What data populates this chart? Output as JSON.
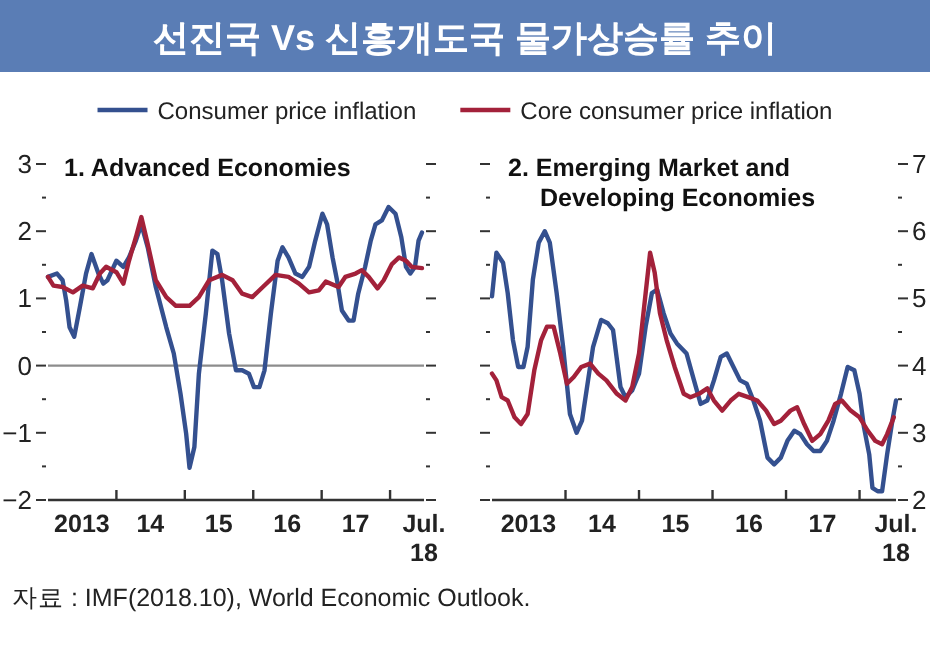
{
  "chart_data": [
    {
      "type": "line",
      "title": "선진국 Vs 신흥개도국 물가상승률 추이",
      "subtitle": "1. Advanced Economies",
      "legend": "top",
      "grid": false,
      "annotations": [
        "자료 : IMF(2018.10), World Economic Outlook."
      ],
      "xlim": [
        "2013-01-01",
        "2018-07-01"
      ],
      "xticks": [
        {
          "value": "2013-07-01",
          "label": "2013"
        },
        {
          "value": "2014-01-01",
          "label": null
        },
        {
          "value": "2014-07-01",
          "label": "14"
        },
        {
          "value": "2015-01-01",
          "label": null
        },
        {
          "value": "2015-07-01",
          "label": "15"
        },
        {
          "value": "2016-01-01",
          "label": null
        },
        {
          "value": "2016-07-01",
          "label": "16"
        },
        {
          "value": "2017-01-01",
          "label": null
        },
        {
          "value": "2017-07-01",
          "label": "17"
        },
        {
          "value": "2018-01-01",
          "label": null
        },
        {
          "value": "2018-07-01",
          "label": "Jul.\n18"
        }
      ],
      "ylim": [
        -2,
        3
      ],
      "yticks": [
        {
          "value": -2,
          "label": "−2"
        },
        {
          "value": -1.5,
          "label": null
        },
        {
          "value": -1,
          "label": "−1"
        },
        {
          "value": -0.5,
          "label": null
        },
        0,
        {
          "value": 0.5,
          "label": null
        },
        1,
        {
          "value": 1.5,
          "label": null
        },
        2,
        {
          "value": 2.5,
          "label": null
        },
        3
      ],
      "ref_lines": [
        {
          "axis": "y",
          "value": 0,
          "color": "#8c8c8c"
        }
      ],
      "series": [
        {
          "name": "Consumer price inflation",
          "color": "#34508f",
          "x": [
            "2013-01-01",
            "2013-02-18",
            "2013-03-20",
            "2013-04-08",
            "2013-04-26",
            "2013-05-21",
            "2013-06-20",
            "2013-07-23",
            "2013-08-21",
            "2013-09-27",
            "2013-10-23",
            "2013-11-14",
            "2014-01-01",
            "2014-02-07",
            "2014-03-09",
            "2014-04-15",
            "2014-05-14",
            "2014-06-17",
            "2014-07-30",
            "2014-09-24",
            "2014-11-03",
            "2014-12-09",
            "2015-01-08",
            "2015-01-26",
            "2015-02-21",
            "2015-03-17",
            "2015-04-23",
            "2015-05-28",
            "2015-06-24",
            "2015-07-19",
            "2015-08-25",
            "2015-10-01",
            "2015-11-03",
            "2015-12-09",
            "2016-01-05",
            "2016-02-03",
            "2016-03-02",
            "2016-04-05",
            "2016-05-11",
            "2016-06-06",
            "2016-07-08",
            "2016-08-14",
            "2016-09-20",
            "2016-10-26",
            "2016-11-28",
            "2017-01-05",
            "2017-01-30",
            "2017-02-28",
            "2017-03-24",
            "2017-04-19",
            "2017-05-25",
            "2017-06-20",
            "2017-07-15",
            "2017-08-21",
            "2017-09-20",
            "2017-10-15",
            "2017-11-18",
            "2017-12-24",
            "2018-01-30",
            "2018-03-02",
            "2018-03-27",
            "2018-04-19",
            "2018-05-14",
            "2018-06-02",
            "2018-06-20"
          ],
          "values": [
            1.32,
            1.37,
            1.27,
            0.97,
            0.57,
            0.43,
            0.87,
            1.37,
            1.66,
            1.37,
            1.22,
            1.27,
            1.56,
            1.47,
            1.61,
            1.86,
            2.1,
            1.76,
            1.17,
            0.57,
            0.18,
            -0.42,
            -1.01,
            -1.52,
            -1.21,
            -0.12,
            0.77,
            1.71,
            1.66,
            1.27,
            0.48,
            -0.07,
            -0.07,
            -0.12,
            -0.32,
            -0.32,
            -0.07,
            0.77,
            1.56,
            1.76,
            1.61,
            1.37,
            1.32,
            1.47,
            1.86,
            2.26,
            2.1,
            1.61,
            1.27,
            0.82,
            0.67,
            0.67,
            1.07,
            1.47,
            1.86,
            2.1,
            2.16,
            2.36,
            2.26,
            1.91,
            1.47,
            1.37,
            1.47,
            1.86,
            1.98
          ]
        },
        {
          "name": "Core consumer price inflation",
          "color": "#a3213a",
          "x": [
            "2013-01-01",
            "2013-01-30",
            "2013-03-20",
            "2013-05-14",
            "2013-07-05",
            "2013-08-28",
            "2013-10-05",
            "2013-11-07",
            "2014-01-01",
            "2014-02-07",
            "2014-03-09",
            "2014-04-15",
            "2014-05-14",
            "2014-06-17",
            "2014-07-30",
            "2014-09-24",
            "2014-11-14",
            "2015-01-26",
            "2015-03-17",
            "2015-05-11",
            "2015-07-19",
            "2015-09-13",
            "2015-11-03",
            "2015-12-27",
            "2016-02-21",
            "2016-04-30",
            "2016-07-08",
            "2016-09-02",
            "2016-10-26",
            "2016-12-17",
            "2017-01-23",
            "2017-04-01",
            "2017-05-07",
            "2017-07-01",
            "2017-08-03",
            "2017-09-09",
            "2017-10-26",
            "2017-11-28",
            "2018-01-11",
            "2018-02-18",
            "2018-03-27",
            "2018-04-26",
            "2018-06-20"
          ],
          "values": [
            1.32,
            1.19,
            1.17,
            1.09,
            1.19,
            1.15,
            1.37,
            1.47,
            1.39,
            1.22,
            1.56,
            1.91,
            2.21,
            1.81,
            1.27,
            1.02,
            0.89,
            0.89,
            1.02,
            1.27,
            1.35,
            1.27,
            1.07,
            1.02,
            1.17,
            1.35,
            1.32,
            1.22,
            1.09,
            1.12,
            1.25,
            1.17,
            1.32,
            1.37,
            1.42,
            1.32,
            1.15,
            1.27,
            1.51,
            1.61,
            1.56,
            1.47,
            1.45
          ]
        }
      ]
    },
    {
      "type": "line",
      "subtitle": "2. Emerging Market and\nDeveloping Economies",
      "xlim": [
        "2013-01-01",
        "2018-07-01"
      ],
      "xticks": [
        {
          "value": "2013-07-01",
          "label": "2013"
        },
        {
          "value": "2014-01-01",
          "label": null
        },
        {
          "value": "2014-07-01",
          "label": "14"
        },
        {
          "value": "2015-01-01",
          "label": null
        },
        {
          "value": "2015-07-01",
          "label": "15"
        },
        {
          "value": "2016-01-01",
          "label": null
        },
        {
          "value": "2016-07-01",
          "label": "16"
        },
        {
          "value": "2017-01-01",
          "label": null
        },
        {
          "value": "2017-07-01",
          "label": "17"
        },
        {
          "value": "2018-01-01",
          "label": null
        },
        {
          "value": "2018-07-01",
          "label": "Jul.\n18"
        }
      ],
      "y2lim": [
        2,
        7
      ],
      "y2ticks": [
        2,
        {
          "value": 2.5,
          "label": null
        },
        3,
        {
          "value": 3.5,
          "label": null
        },
        4,
        {
          "value": 4.5,
          "label": null
        },
        5,
        {
          "value": 5.5,
          "label": null
        },
        6,
        {
          "value": 6.5,
          "label": null
        },
        7
      ],
      "series": [
        {
          "color": "#34508f",
          "axis": "y2",
          "x": [
            "2013-01-01",
            "2013-01-23",
            "2013-02-25",
            "2013-03-20",
            "2013-04-15",
            "2013-05-11",
            "2013-06-06",
            "2013-06-27",
            "2013-07-23",
            "2013-08-21",
            "2013-09-20",
            "2013-10-15",
            "2013-11-18",
            "2013-12-20",
            "2014-01-23",
            "2014-02-25",
            "2014-03-24",
            "2014-04-23",
            "2014-05-18",
            "2014-06-27",
            "2014-07-30",
            "2014-08-25",
            "2014-10-01",
            "2014-10-26",
            "2014-11-28",
            "2015-01-01",
            "2015-02-03",
            "2015-03-06",
            "2015-04-01",
            "2015-05-03",
            "2015-06-06",
            "2015-07-08",
            "2015-08-25",
            "2015-10-01",
            "2015-11-03",
            "2015-12-06",
            "2016-01-08",
            "2016-02-11",
            "2016-03-13",
            "2016-04-15",
            "2016-05-18",
            "2016-06-20",
            "2016-07-23",
            "2016-08-25",
            "2016-10-01",
            "2016-11-03",
            "2016-12-06",
            "2017-01-08",
            "2017-02-11",
            "2017-03-13",
            "2017-04-15",
            "2017-05-18",
            "2017-06-20",
            "2017-07-23",
            "2017-08-25",
            "2017-10-01",
            "2017-11-03",
            "2017-12-06",
            "2018-01-01",
            "2018-01-23",
            "2018-02-18",
            "2018-03-06",
            "2018-04-01",
            "2018-04-23",
            "2018-05-18",
            "2018-06-13",
            "2018-07-01"
          ],
          "values": [
            5.03,
            5.68,
            5.53,
            5.08,
            4.38,
            3.98,
            3.98,
            4.28,
            5.28,
            5.83,
            6.0,
            5.83,
            5.08,
            4.28,
            3.28,
            3.0,
            3.18,
            3.78,
            4.28,
            4.68,
            4.63,
            4.53,
            3.68,
            3.53,
            3.63,
            3.88,
            4.58,
            5.08,
            5.13,
            4.78,
            4.48,
            4.33,
            4.18,
            3.78,
            3.43,
            3.48,
            3.78,
            4.13,
            4.18,
            3.98,
            3.78,
            3.73,
            3.48,
            3.18,
            2.63,
            2.53,
            2.63,
            2.88,
            3.03,
            2.98,
            2.83,
            2.73,
            2.73,
            2.88,
            3.18,
            3.58,
            3.98,
            3.93,
            3.58,
            3.08,
            2.68,
            2.18,
            2.13,
            2.13,
            2.68,
            3.18,
            3.48
          ]
        },
        {
          "color": "#a3213a",
          "axis": "y2",
          "x": [
            "2013-01-01",
            "2013-01-23",
            "2013-02-18",
            "2013-03-20",
            "2013-04-23",
            "2013-05-25",
            "2013-06-27",
            "2013-07-30",
            "2013-09-02",
            "2013-10-01",
            "2013-11-03",
            "2013-12-06",
            "2014-01-08",
            "2014-02-11",
            "2014-03-20",
            "2014-05-03",
            "2014-06-13",
            "2014-07-23",
            "2014-09-13",
            "2014-10-26",
            "2014-11-28",
            "2015-01-01",
            "2015-02-03",
            "2015-02-25",
            "2015-03-20",
            "2015-04-15",
            "2015-05-18",
            "2015-06-27",
            "2015-08-11",
            "2015-09-13",
            "2015-10-26",
            "2015-12-06",
            "2016-01-08",
            "2016-02-18",
            "2016-04-01",
            "2016-05-11",
            "2016-06-27",
            "2016-08-11",
            "2016-09-24",
            "2016-11-03",
            "2016-12-06",
            "2017-01-23",
            "2017-02-25",
            "2017-04-01",
            "2017-05-11",
            "2017-06-20",
            "2017-07-30",
            "2017-09-02",
            "2017-10-05",
            "2017-11-18",
            "2018-01-01",
            "2018-02-11",
            "2018-03-20",
            "2018-04-23",
            "2018-05-18",
            "2018-06-20"
          ],
          "values": [
            3.88,
            3.78,
            3.53,
            3.48,
            3.23,
            3.13,
            3.28,
            3.93,
            4.38,
            4.58,
            4.58,
            4.18,
            3.73,
            3.83,
            3.98,
            4.03,
            3.88,
            3.78,
            3.58,
            3.48,
            3.68,
            4.18,
            5.08,
            5.68,
            5.38,
            4.78,
            4.38,
            3.98,
            3.58,
            3.53,
            3.58,
            3.66,
            3.48,
            3.33,
            3.48,
            3.58,
            3.53,
            3.48,
            3.33,
            3.13,
            3.18,
            3.33,
            3.38,
            3.13,
            2.88,
            2.98,
            3.18,
            3.43,
            3.48,
            3.33,
            3.23,
            3.03,
            2.88,
            2.83,
            2.98,
            3.23
          ]
        }
      ]
    }
  ]
}
